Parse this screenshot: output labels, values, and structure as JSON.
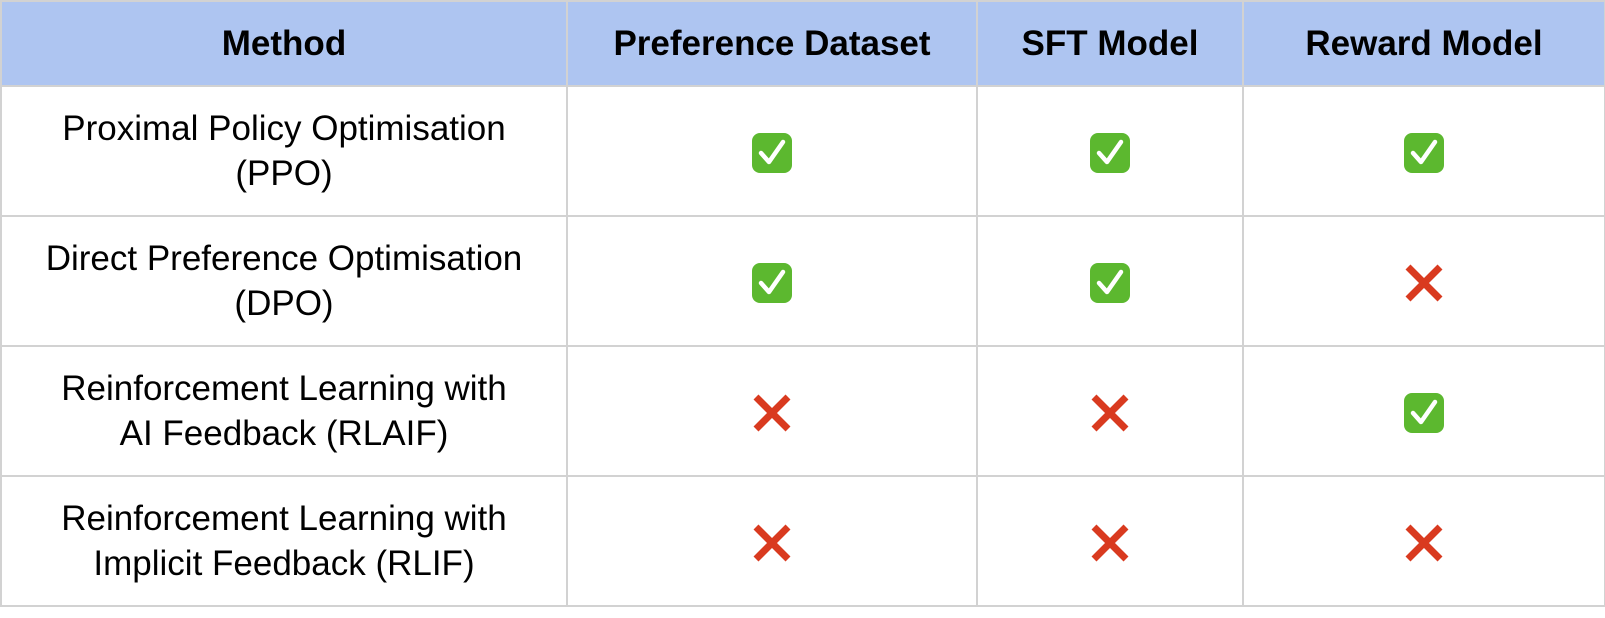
{
  "table": {
    "headers": [
      "Method",
      "Preference Dataset",
      "SFT Model",
      "Reward Model"
    ],
    "rows": [
      {
        "method_line1": "Proximal Policy Optimisation",
        "method_line2": "(PPO)",
        "preference_dataset": "yes",
        "sft_model": "yes",
        "reward_model": "yes"
      },
      {
        "method_line1": "Direct Preference Optimisation",
        "method_line2": "(DPO)",
        "preference_dataset": "yes",
        "sft_model": "yes",
        "reward_model": "no"
      },
      {
        "method_line1": "Reinforcement Learning with",
        "method_line2": "AI Feedback (RLAIF)",
        "preference_dataset": "no",
        "sft_model": "no",
        "reward_model": "yes"
      },
      {
        "method_line1": "Reinforcement Learning with",
        "method_line2": "Implicit Feedback (RLIF)",
        "preference_dataset": "no",
        "sft_model": "no",
        "reward_model": "no"
      }
    ]
  },
  "icons": {
    "yes": "check-mark-icon",
    "no": "cross-mark-icon"
  },
  "colors": {
    "header_background": "#aec5f1",
    "border": "#d2d2d2",
    "check_green": "#5cb82f",
    "cross_red": "#d93a1f"
  }
}
